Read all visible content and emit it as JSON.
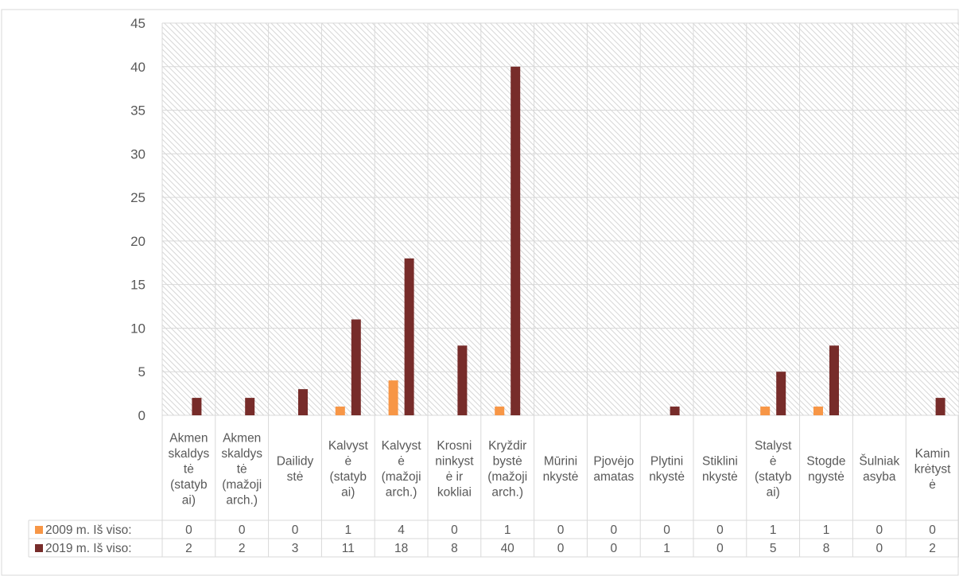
{
  "chart_data": {
    "type": "bar",
    "title": "",
    "xlabel": "",
    "ylabel": "",
    "ylim": [
      0,
      45
    ],
    "yticks": [
      0,
      5,
      10,
      15,
      20,
      25,
      30,
      35,
      40,
      45
    ],
    "grid": true,
    "legend": "data-table",
    "categories": [
      [
        "Akmen",
        "skaldys",
        "tė",
        "(statyb",
        "ai)"
      ],
      [
        "Akmen",
        "skaldys",
        "tė",
        "(mažoji",
        "arch.)"
      ],
      [
        "Dailidy",
        "stė"
      ],
      [
        "Kalvyst",
        "ė",
        "(statyb",
        "ai)"
      ],
      [
        "Kalvyst",
        "ė",
        "(mažoji",
        "arch.)"
      ],
      [
        "Krosni",
        "ninkyst",
        "ė ir",
        "kokliai"
      ],
      [
        "Kryždir",
        "bystė",
        "(mažoji",
        "arch.)"
      ],
      [
        "Mūrini",
        "nkystė"
      ],
      [
        "Pjovėjo",
        "amatas"
      ],
      [
        "Plytini",
        "nkystė"
      ],
      [
        "Stiklini",
        "nkystė"
      ],
      [
        "Stalyst",
        "ė",
        "(statyb",
        "ai)"
      ],
      [
        "Stogde",
        "ngystė"
      ],
      [
        "Šulniak",
        "asyba"
      ],
      [
        "Kamin",
        "krėtyst",
        "ė"
      ]
    ],
    "series": [
      {
        "name": "2009 m. Iš viso:",
        "color": "#F79646",
        "values": [
          0,
          0,
          0,
          1,
          4,
          0,
          1,
          0,
          0,
          0,
          0,
          1,
          1,
          0,
          0
        ]
      },
      {
        "name": "2019 m. Iš viso:",
        "color": "#772C2A",
        "values": [
          2,
          2,
          3,
          11,
          18,
          8,
          40,
          0,
          0,
          1,
          0,
          5,
          8,
          0,
          2
        ]
      }
    ]
  }
}
